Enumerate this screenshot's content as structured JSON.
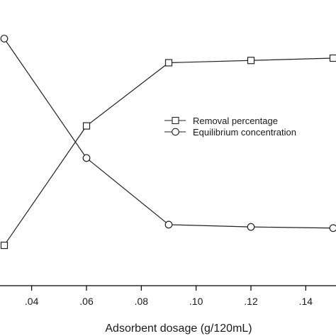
{
  "chart_data": {
    "type": "line",
    "xlabel": "Adsorbent dosage (g/120mL)",
    "ylabel": "",
    "xlim": [
      0.03,
      0.15
    ],
    "x_ticks": [
      0.04,
      0.06,
      0.08,
      0.1,
      0.12,
      0.14
    ],
    "x_tick_labels": [
      ".04",
      ".06",
      ".08",
      ".10",
      ".12",
      ".14"
    ],
    "grid": false,
    "legend_position": "center-right",
    "series": [
      {
        "name": "Removal percentage",
        "marker": "square",
        "x": [
          0.03,
          0.06,
          0.09,
          0.12,
          0.15
        ],
        "values": [
          0.08,
          0.6,
          0.875,
          0.885,
          0.895
        ]
      },
      {
        "name": "Equilibrium concentration",
        "marker": "circle",
        "x": [
          0.03,
          0.06,
          0.09,
          0.12,
          0.15
        ],
        "values": [
          0.98,
          0.46,
          0.17,
          0.16,
          0.155
        ]
      }
    ]
  }
}
